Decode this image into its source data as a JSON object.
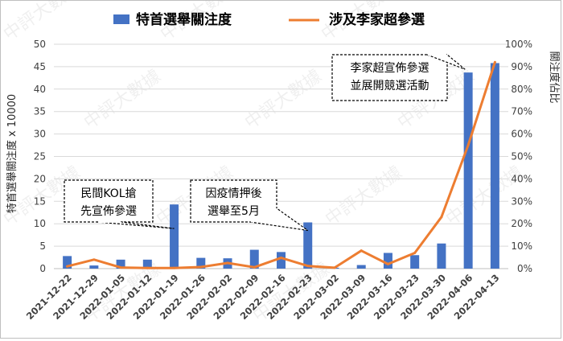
{
  "chart_data": {
    "type": "bar+line",
    "title": "",
    "legend": {
      "placement": "top",
      "bar_label": "特首選舉關注度",
      "line_label": "涉及李家超參選"
    },
    "categories": [
      "2021-12-22",
      "2021-12-29",
      "2022-01-05",
      "2022-01-12",
      "2022-01-19",
      "2022-01-26",
      "2022-02-02",
      "2022-02-09",
      "2022-02-16",
      "2022-02-23",
      "2022-03-02",
      "2022-03-09",
      "2022-03-16",
      "2022-03-23",
      "2022-03-30",
      "2022-04-06",
      "2022-04-13"
    ],
    "series": [
      {
        "name": "特首選舉關注度",
        "type": "bar",
        "axis": "left",
        "color": "#4472c4",
        "values": [
          2.8,
          0.7,
          2.0,
          2.0,
          14.3,
          2.4,
          2.3,
          4.2,
          3.7,
          10.3,
          0.2,
          0.8,
          3.5,
          3.0,
          5.6,
          43.7,
          45.8
        ]
      },
      {
        "name": "涉及李家超參選",
        "type": "line",
        "axis": "right",
        "color": "#ed7d31",
        "values": [
          1,
          4,
          0.5,
          0.3,
          0.3,
          0.7,
          2.5,
          0.6,
          4.8,
          1.2,
          0.4,
          8,
          2,
          7,
          23,
          55,
          92
        ]
      }
    ],
    "y_left": {
      "label": "特首選舉關注度 x 10000",
      "ylim": [
        0,
        50
      ],
      "ticks": [
        "0",
        "5",
        "10",
        "15",
        "20",
        "25",
        "30",
        "35",
        "40",
        "45",
        "50"
      ]
    },
    "y_right": {
      "label": "關注度佔比",
      "ylim": [
        0,
        100
      ],
      "ticks": [
        "0%",
        "10%",
        "20%",
        "30%",
        "40%",
        "50%",
        "60%",
        "70%",
        "80%",
        "90%",
        "100%"
      ]
    },
    "grid": true,
    "annotations": [
      {
        "lines": [
          "民間KOL搶",
          "先宣佈參選"
        ],
        "target_index": 4
      },
      {
        "lines": [
          "因疫情押後",
          "選舉至5月"
        ],
        "target_index": 9
      },
      {
        "lines": [
          "李家超宣佈參選",
          "並展開競選活動"
        ],
        "target_index": 15
      }
    ],
    "watermark": "中評大數據"
  }
}
